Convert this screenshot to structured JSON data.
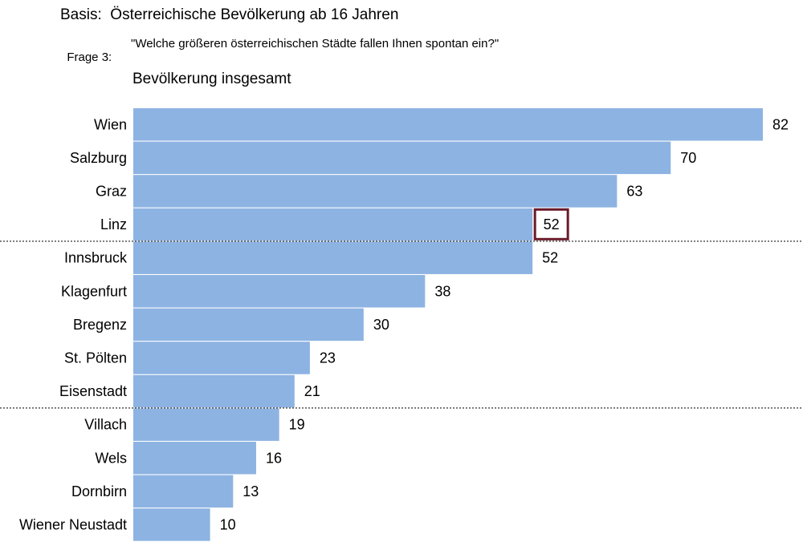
{
  "header": {
    "basis": "Basis:  Österreichische Bevölkerung ab 16 Jahren",
    "frage_label": "Frage 3:",
    "frage_text": "\"Welche größeren österreichischen Städte fallen Ihnen spontan ein?\""
  },
  "chart_data": {
    "type": "bar",
    "orientation": "horizontal",
    "title": "Bevölkerung insgesamt",
    "categories": [
      "Wien",
      "Salzburg",
      "Graz",
      "Linz",
      "Innsbruck",
      "Klagenfurt",
      "Bregenz",
      "St. Pölten",
      "Eisenstadt",
      "Villach",
      "Wels",
      "Dornbirn",
      "Wiener Neustadt"
    ],
    "values": [
      82,
      70,
      63,
      52,
      52,
      38,
      30,
      23,
      21,
      19,
      16,
      13,
      10
    ],
    "xlim": [
      0,
      82
    ],
    "bar_color": "#8db3e2",
    "highlighted_category": "Linz",
    "highlight_color": "#6b1a2a",
    "separators_after": [
      "Linz",
      "Eisenstadt"
    ],
    "grid": false,
    "legend": "none"
  }
}
